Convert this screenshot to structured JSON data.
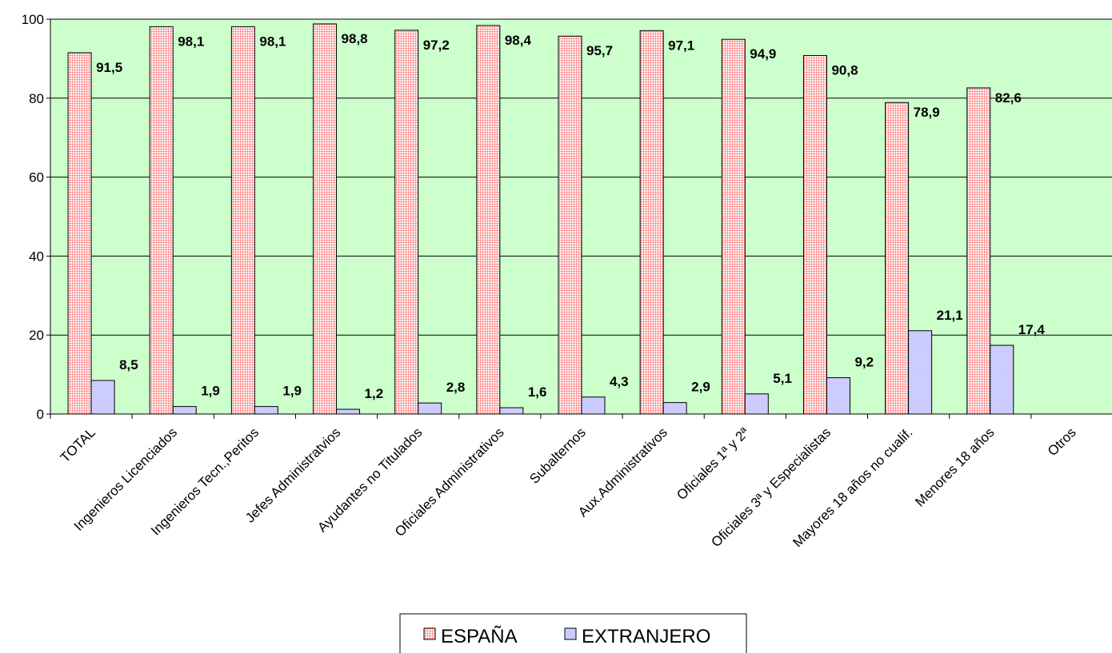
{
  "chart_data": {
    "type": "bar",
    "categories": [
      "TOTAL",
      "Ingenieros Licenciados",
      "Ingenieros Tecn.,Peritos",
      "Jefes Administratvios",
      "Ayudantes no Titulados",
      "Oficiales Administrativos",
      "Subalternos",
      "Aux.Administrativos",
      "Oficiales 1ª y 2ª",
      "Oficiales 3ª y Especialistas",
      "Mayores 18 años no cualif.",
      "Menores 18 años",
      "Otros"
    ],
    "series": [
      {
        "name": "ESPAÑA",
        "values": [
          91.5,
          98.1,
          98.1,
          98.8,
          97.2,
          98.4,
          95.7,
          97.1,
          94.9,
          90.8,
          78.9,
          82.6,
          null
        ],
        "labels": [
          "91,5",
          "98,1",
          "98,1",
          "98,8",
          "97,2",
          "98,4",
          "95,7",
          "97,1",
          "94,9",
          "90,8",
          "78,9",
          "82,6",
          ""
        ],
        "color": "#ff9999"
      },
      {
        "name": "EXTRANJERO",
        "values": [
          8.5,
          1.9,
          1.9,
          1.2,
          2.8,
          1.6,
          4.3,
          2.9,
          5.1,
          9.2,
          21.1,
          17.4,
          null
        ],
        "labels": [
          "8,5",
          "1,9",
          "1,9",
          "1,2",
          "2,8",
          "1,6",
          "4,3",
          "2,9",
          "5,1",
          "9,2",
          "21,1",
          "17,4",
          ""
        ],
        "color": "#9999ff"
      }
    ],
    "ylim": [
      0,
      100
    ],
    "yticks": [
      "0",
      "20",
      "40",
      "60",
      "80",
      "100"
    ],
    "grid": true,
    "legend_position": "bottom",
    "plot_background": "#ccffcc"
  }
}
